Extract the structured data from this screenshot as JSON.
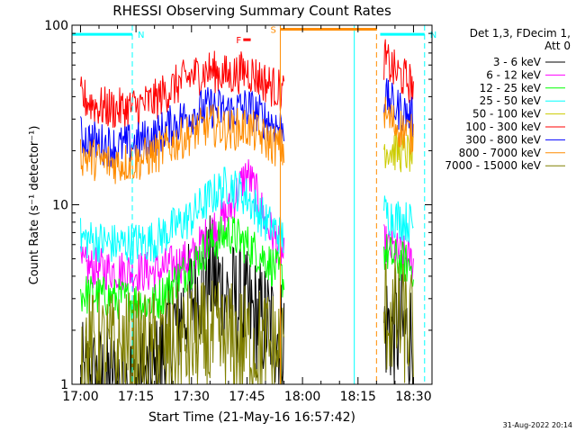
{
  "chart_data": {
    "type": "line",
    "title": "RHESSI Observing Summary Count Rates",
    "xlabel": "Start Time (21-May-16 16:57:42)",
    "ylabel": "Count Rate (s⁻¹ detector⁻¹)",
    "xlim": [
      "16:57:42",
      "18:35:00"
    ],
    "ylim": [
      1,
      100
    ],
    "y_scale": "log",
    "x_tick_labels": [
      "17:00",
      "17:15",
      "17:30",
      "17:45",
      "18:00",
      "18:15",
      "18:30"
    ],
    "y_tick_labels": [
      "1",
      "10",
      "100"
    ],
    "legend": {
      "placement": "right",
      "header_lines": [
        "Det 1,3, FDecim 1,",
        "Att 0"
      ]
    },
    "series": [
      {
        "name": "3 - 6 keV",
        "color": "#000000",
        "x": [
          "17:00",
          "17:10",
          "17:20",
          "17:30",
          "17:35",
          "17:40",
          "17:45",
          "17:50",
          "17:55",
          "18:22",
          "18:25",
          "18:30"
        ],
        "y": [
          1.0,
          1.0,
          1.0,
          3.0,
          4.0,
          3.0,
          2.5,
          2.2,
          1.8,
          2.2,
          2.0,
          1.8
        ]
      },
      {
        "name": "6 - 12 keV",
        "color": "#ff00ff",
        "x": [
          "17:00",
          "17:10",
          "17:20",
          "17:30",
          "17:35",
          "17:40",
          "17:45",
          "17:50",
          "17:55",
          "18:22",
          "18:25",
          "18:30"
        ],
        "y": [
          4.5,
          4.3,
          4.2,
          5.0,
          7.0,
          9.0,
          15.0,
          8.0,
          5.0,
          6.0,
          5.5,
          4.8
        ]
      },
      {
        "name": "12 - 25 keV",
        "color": "#00ff00",
        "x": [
          "17:00",
          "17:10",
          "17:20",
          "17:30",
          "17:35",
          "17:40",
          "17:45",
          "17:50",
          "17:55",
          "18:22",
          "18:25",
          "18:30"
        ],
        "y": [
          3.2,
          3.0,
          2.8,
          4.5,
          6.0,
          7.0,
          6.0,
          5.0,
          3.8,
          5.5,
          5.0,
          4.5
        ]
      },
      {
        "name": "25 - 50 keV",
        "color": "#00ffff",
        "x": [
          "17:00",
          "17:10",
          "17:20",
          "17:30",
          "17:35",
          "17:40",
          "17:45",
          "17:50",
          "17:55",
          "18:22",
          "18:25",
          "18:30"
        ],
        "y": [
          6.5,
          6.0,
          6.3,
          8.5,
          11.0,
          13.0,
          11.0,
          8.0,
          6.5,
          9.0,
          8.5,
          7.8
        ]
      },
      {
        "name": "50 - 100 keV",
        "color": "#cccc00",
        "x": [
          "18:22",
          "18:25",
          "18:30"
        ],
        "y": [
          21.0,
          20.0,
          19.0
        ]
      },
      {
        "name": "100 - 300 keV",
        "color": "#ff0000",
        "x": [
          "17:00",
          "17:05",
          "17:10",
          "17:15",
          "17:20",
          "17:25",
          "17:30",
          "17:35",
          "17:40",
          "17:45",
          "17:50",
          "17:55",
          "18:22",
          "18:25",
          "18:30"
        ],
        "y": [
          40.0,
          35.0,
          34.0,
          35.0,
          38.0,
          45.0,
          52.0,
          56.0,
          52.0,
          56.0,
          48.0,
          42.0,
          65.0,
          55.0,
          46.0
        ]
      },
      {
        "name": "300 - 800 keV",
        "color": "#0000ff",
        "x": [
          "17:00",
          "17:05",
          "17:10",
          "17:15",
          "17:20",
          "17:25",
          "17:30",
          "17:35",
          "17:40",
          "17:45",
          "17:50",
          "17:55",
          "18:22",
          "18:25",
          "18:30"
        ],
        "y": [
          24.0,
          22.0,
          21.0,
          22.0,
          24.0,
          28.0,
          32.0,
          35.0,
          33.0,
          35.0,
          30.0,
          26.0,
          40.0,
          35.0,
          30.0
        ]
      },
      {
        "name": "800 - 7000 keV",
        "color": "#ff8c00",
        "x": [
          "17:00",
          "17:05",
          "17:10",
          "17:15",
          "17:20",
          "17:25",
          "17:30",
          "17:35",
          "17:40",
          "17:45",
          "17:50",
          "17:55",
          "18:22",
          "18:25",
          "18:30"
        ],
        "y": [
          19.0,
          17.5,
          17.0,
          17.5,
          19.0,
          22.0,
          25.0,
          28.0,
          26.0,
          27.0,
          23.0,
          20.0,
          32.0,
          28.0,
          24.0
        ]
      },
      {
        "name": "7000 - 15000 keV",
        "color": "#808000",
        "x": [
          "17:00",
          "17:10",
          "17:20",
          "17:30",
          "17:40",
          "17:50",
          "17:55",
          "18:22",
          "18:25",
          "18:30"
        ],
        "y": [
          1.5,
          1.5,
          1.5,
          1.7,
          1.7,
          1.6,
          1.5,
          2.5,
          2.3,
          2.0
        ]
      }
    ],
    "flags": [
      {
        "label": "N",
        "color": "#00ffff",
        "start": "16:57:42",
        "end": "17:14",
        "y": 89
      },
      {
        "label": "N",
        "color": "#00ffff",
        "start": "18:21",
        "end": "18:33",
        "y": 89
      },
      {
        "label": "S",
        "color": "#ff8c00",
        "start": "17:54",
        "end": "18:20",
        "y": 95
      },
      {
        "label": "F",
        "color": "#ff0000",
        "start": "17:44",
        "end": "17:46",
        "y": 83
      }
    ],
    "vertical_lines": [
      {
        "time": "17:14",
        "color": "#00ffff",
        "style": "dashed"
      },
      {
        "time": "17:54",
        "color": "#ff8c00",
        "style": "solid"
      },
      {
        "time": "18:14",
        "color": "#00ffff",
        "style": "solid"
      },
      {
        "time": "18:20",
        "color": "#ff8c00",
        "style": "dashed"
      },
      {
        "time": "18:33",
        "color": "#00ffff",
        "style": "dashed"
      }
    ]
  },
  "footer": {
    "date_stamp": "31-Aug-2022 20:14"
  }
}
